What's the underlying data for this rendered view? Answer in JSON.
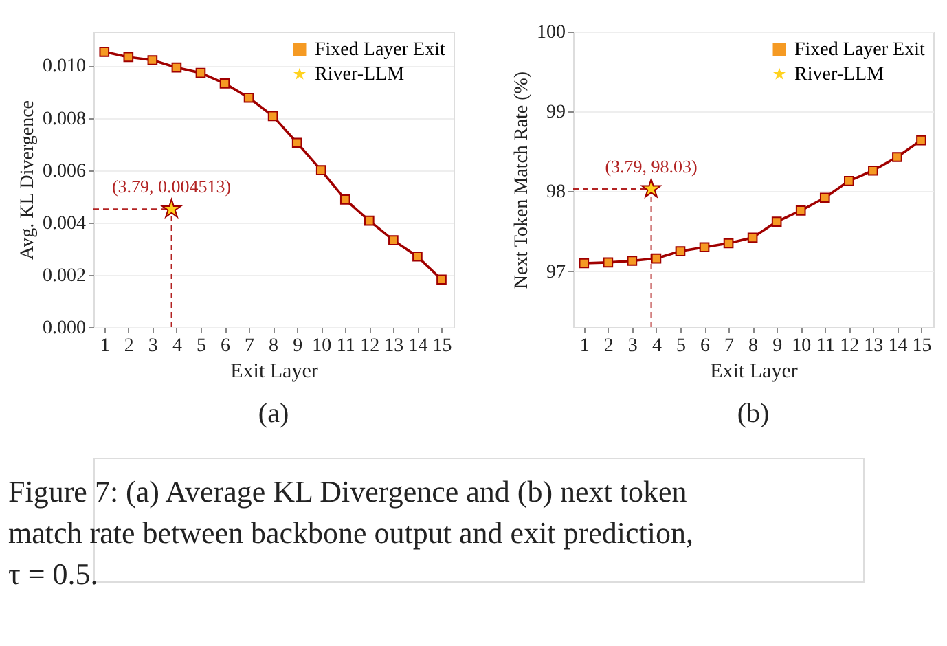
{
  "chart_data": [
    {
      "type": "line",
      "xlabel": "Exit Layer",
      "ylabel": "Avg. KL Divergence",
      "x": [
        1,
        2,
        3,
        4,
        5,
        6,
        7,
        8,
        9,
        10,
        11,
        12,
        13,
        14,
        15
      ],
      "xlim": [
        0.55,
        15.5
      ],
      "xticks": [
        1,
        2,
        3,
        4,
        5,
        6,
        7,
        8,
        9,
        10,
        11,
        12,
        13,
        14,
        15
      ],
      "ylim": [
        0,
        0.0113
      ],
      "yticks": [
        {
          "value": 0,
          "label": "0.000"
        },
        {
          "value": 0.002,
          "label": "0.002"
        },
        {
          "value": 0.004,
          "label": "0.004"
        },
        {
          "value": 0.006,
          "label": "0.006"
        },
        {
          "value": 0.008,
          "label": "0.008"
        },
        {
          "value": 0.01,
          "label": "0.010"
        }
      ],
      "grid": "y",
      "legend": "top right",
      "series": [
        {
          "name": "Fixed Layer Exit",
          "marker": "square",
          "color": "#a00000",
          "values": [
            0.01053,
            0.01033,
            0.01021,
            0.00993,
            0.00972,
            0.00932,
            0.00877,
            0.00807,
            0.00705,
            0.006,
            0.00488,
            0.00407,
            0.00332,
            0.0027,
            0.00182
          ]
        },
        {
          "name": "River-LLM",
          "type": "scatter",
          "marker": "star",
          "color": "#ffd21f",
          "x": [
            3.79
          ],
          "values": [
            0.004513
          ]
        }
      ],
      "annotations": [
        {
          "text": "(3.79, 0.004513)",
          "x": 3.79,
          "y": 0.004513
        },
        "(a)",
        "Figure 7: (a) Average KL Divergence and (b) next token match rate between backbone output and exit prediction, τ = 0.5."
      ]
    },
    {
      "type": "line",
      "xlabel": "Exit Layer",
      "ylabel": "Next Token Match Rate (%)",
      "x": [
        1,
        2,
        3,
        4,
        5,
        6,
        7,
        8,
        9,
        10,
        11,
        12,
        13,
        14,
        15
      ],
      "xlim": [
        0.55,
        15.5
      ],
      "xticks": [
        1,
        2,
        3,
        4,
        5,
        6,
        7,
        8,
        9,
        10,
        11,
        12,
        13,
        14,
        15
      ],
      "ylim": [
        96.3,
        100
      ],
      "yticks": [
        97,
        98,
        99,
        100
      ],
      "grid": "y",
      "legend": "top right",
      "series": [
        {
          "name": "Fixed Layer Exit",
          "marker": "square",
          "color": "#a00000",
          "values": [
            97.1,
            97.11,
            97.13,
            97.16,
            97.25,
            97.3,
            97.35,
            97.42,
            97.62,
            97.76,
            97.92,
            98.13,
            98.26,
            98.43,
            98.64
          ]
        },
        {
          "name": "River-LLM",
          "type": "scatter",
          "marker": "star",
          "color": "#ffd21f",
          "x": [
            3.79
          ],
          "values": [
            98.03
          ]
        }
      ],
      "annotations": [
        {
          "text": "(3.79, 98.03)",
          "x": 3.79,
          "y": 98.03
        },
        "(b)"
      ]
    }
  ]
}
